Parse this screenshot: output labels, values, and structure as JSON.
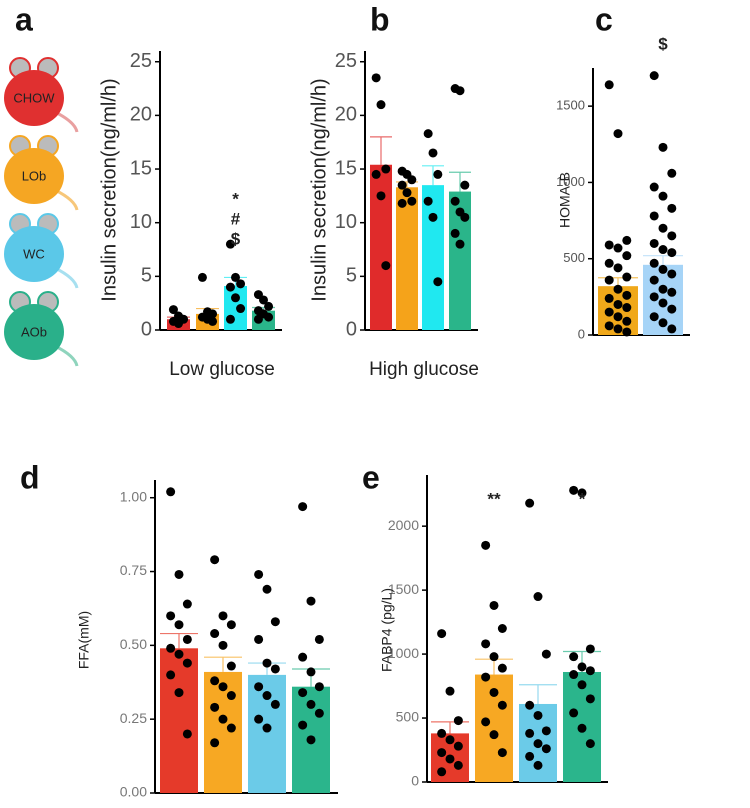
{
  "chart_data": [
    {
      "type": "bar",
      "panel": "a",
      "ylabel": "Insulin secretion(ng/ml/h)",
      "xlabel": "Low glucose",
      "categories": [
        "CHOW",
        "LOb",
        "WC",
        "AOb"
      ],
      "colors": [
        "#e02b2b",
        "#f5a31a",
        "#20e8f0",
        "#2ab58a"
      ],
      "values": [
        1.0,
        1.5,
        4.1,
        1.8
      ],
      "errors": [
        0.2,
        0.5,
        0.8,
        0.3
      ],
      "points": [
        [
          1.9,
          1.3,
          1.0,
          0.8,
          0.6
        ],
        [
          4.9,
          1.7,
          1.5,
          1.2,
          1.0,
          0.8
        ],
        [
          8.0,
          4.9,
          4.3,
          4.0,
          3.0,
          2.0,
          1.0
        ],
        [
          3.3,
          2.8,
          2.2,
          1.8,
          1.5,
          1.2,
          1.0
        ]
      ],
      "annotations": [
        null,
        null,
        [
          "*",
          "#",
          "$"
        ],
        null
      ],
      "ylim": [
        0,
        26
      ],
      "yticks": [
        0,
        5,
        10,
        15,
        20,
        25
      ]
    },
    {
      "type": "bar",
      "panel": "b",
      "ylabel": "Insulin secretion(ng/ml/h)",
      "xlabel": "High glucose",
      "colors": [
        "#e02b2b",
        "#f5a31a",
        "#20e8f0",
        "#2ab58a"
      ],
      "values": [
        15.4,
        13.3,
        13.5,
        12.9
      ],
      "errors": [
        2.6,
        0.5,
        1.8,
        1.8
      ],
      "points": [
        [
          23.5,
          21.0,
          15.0,
          14.5,
          12.5,
          6.0
        ],
        [
          14.8,
          14.5,
          14.0,
          13.5,
          12.8,
          12.0,
          11.8
        ],
        [
          18.3,
          16.5,
          14.5,
          12.0,
          10.5,
          4.5
        ],
        [
          22.5,
          22.3,
          13.5,
          12.0,
          11.0,
          10.5,
          9.0,
          8.0
        ]
      ],
      "ylim": [
        0,
        26
      ],
      "yticks": [
        0,
        5,
        10,
        15,
        20,
        25
      ]
    },
    {
      "type": "bar",
      "panel": "c",
      "ylabel": "HOMA-B",
      "colors": [
        "#f0a81a",
        "#a6d4f7"
      ],
      "values": [
        320,
        460
      ],
      "errors": [
        55,
        60
      ],
      "points": [
        [
          1640,
          1320,
          620,
          590,
          570,
          520,
          470,
          440,
          380,
          360,
          300,
          260,
          240,
          200,
          180,
          150,
          120,
          90,
          60,
          40,
          20
        ],
        [
          1700,
          1230,
          1060,
          970,
          910,
          830,
          780,
          700,
          650,
          600,
          560,
          540,
          470,
          430,
          400,
          360,
          300,
          280,
          250,
          210,
          170,
          120,
          80,
          40
        ]
      ],
      "annotations": [
        null,
        [
          "$"
        ]
      ],
      "ylim": [
        0,
        1750
      ],
      "yticks": [
        0,
        500,
        1000,
        1500
      ]
    },
    {
      "type": "bar",
      "panel": "d",
      "ylabel": "FFA(mM)",
      "colors": [
        "#e53a2a",
        "#f7a823",
        "#6bcbe8",
        "#2bb58c"
      ],
      "values": [
        0.49,
        0.41,
        0.4,
        0.36
      ],
      "errors": [
        0.05,
        0.05,
        0.04,
        0.06
      ],
      "points": [
        [
          1.02,
          0.74,
          0.64,
          0.6,
          0.57,
          0.52,
          0.49,
          0.47,
          0.44,
          0.4,
          0.34,
          0.2
        ],
        [
          0.79,
          0.6,
          0.57,
          0.54,
          0.5,
          0.43,
          0.38,
          0.36,
          0.33,
          0.29,
          0.25,
          0.22,
          0.17
        ],
        [
          0.74,
          0.69,
          0.58,
          0.52,
          0.44,
          0.42,
          0.36,
          0.33,
          0.3,
          0.25,
          0.22
        ],
        [
          0.97,
          0.65,
          0.52,
          0.46,
          0.41,
          0.36,
          0.34,
          0.3,
          0.27,
          0.23,
          0.18
        ]
      ],
      "ylim": [
        0,
        1.06
      ],
      "yticks": [
        {
          "value": 0,
          "label": "0.00"
        },
        0.25,
        {
          "value": 0.5,
          "label": "0.50"
        },
        0.75,
        {
          "value": 1,
          "label": "1.00"
        }
      ]
    },
    {
      "type": "bar",
      "panel": "e",
      "ylabel": "FABP4 (pg/L)",
      "colors": [
        "#e53a2a",
        "#f7a823",
        "#6bcbe8",
        "#2bb58c"
      ],
      "values": [
        380,
        840,
        610,
        860
      ],
      "errors": [
        90,
        120,
        150,
        160
      ],
      "points": [
        [
          1160,
          710,
          480,
          380,
          330,
          280,
          230,
          180,
          130,
          80
        ],
        [
          1850,
          1380,
          1200,
          1080,
          980,
          890,
          820,
          700,
          600,
          470,
          370,
          230
        ],
        [
          2180,
          1450,
          1000,
          600,
          520,
          400,
          380,
          300,
          260,
          200,
          130
        ],
        [
          2280,
          2260,
          1040,
          980,
          900,
          870,
          840,
          760,
          650,
          540,
          420,
          300
        ]
      ],
      "annotations": [
        null,
        [
          "**"
        ],
        null,
        [
          "*"
        ]
      ],
      "ylim": [
        0,
        2400
      ],
      "yticks": [
        0,
        500,
        1000,
        1500,
        2000
      ]
    }
  ]
}
